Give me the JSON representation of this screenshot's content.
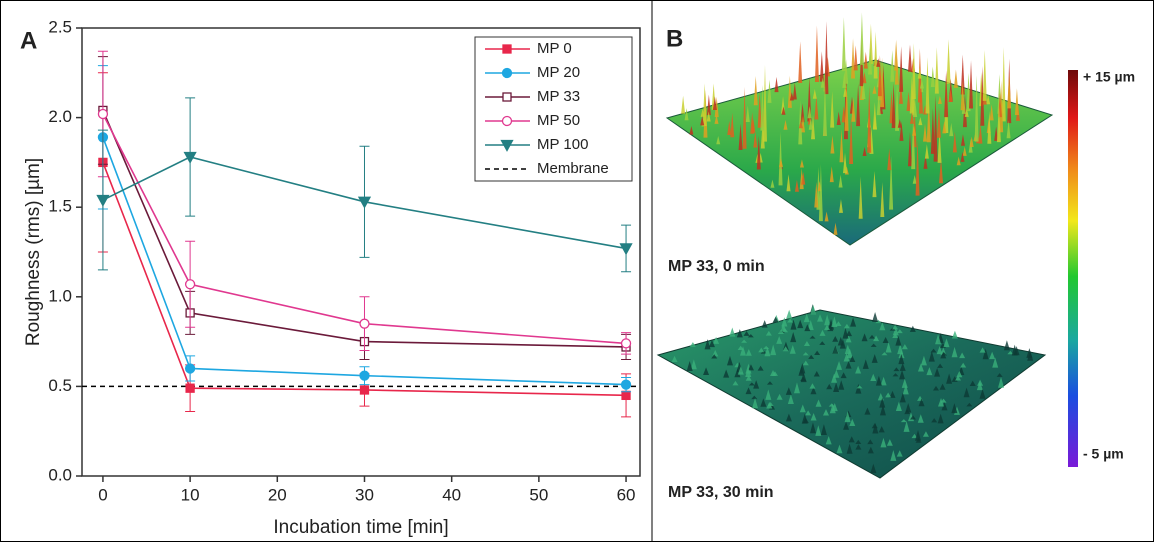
{
  "chart_data": {
    "type": "line",
    "panel_label": "A",
    "xlabel": "Incubation time [min]",
    "ylabel": "Roughness (rms) [µm]",
    "x": [
      0,
      10,
      30,
      60
    ],
    "xlim": [
      -2.4,
      61.6
    ],
    "ylim": [
      0,
      2.5
    ],
    "xticks": [
      0,
      10,
      20,
      30,
      40,
      50,
      60
    ],
    "yticks": [
      {
        "value": 0,
        "label": "0.0"
      },
      0.5,
      {
        "value": 1,
        "label": "1.0"
      },
      1.5,
      {
        "value": 2,
        "label": "2.0"
      },
      2.5
    ],
    "legend": "upper right",
    "series": [
      {
        "name": "MP 0",
        "color": "#e8274b",
        "marker": "square",
        "filled": true,
        "values": [
          1.75,
          0.49,
          0.48,
          0.45
        ],
        "errors": [
          0.5,
          0.13,
          0.09,
          0.12
        ]
      },
      {
        "name": "MP 20",
        "color": "#1ea7e1",
        "marker": "circle",
        "filled": true,
        "values": [
          1.89,
          0.6,
          0.56,
          0.51
        ],
        "errors": [
          0.4,
          0.07,
          0.05,
          0.04
        ]
      },
      {
        "name": "MP 33",
        "color": "#6b1a3a",
        "marker": "square",
        "filled": false,
        "values": [
          2.04,
          0.91,
          0.75,
          0.72
        ],
        "errors": [
          0.3,
          0.12,
          0.1,
          0.07
        ]
      },
      {
        "name": "MP 50",
        "color": "#e0388f",
        "marker": "circle",
        "filled": false,
        "values": [
          2.02,
          1.07,
          0.85,
          0.74
        ],
        "errors": [
          0.35,
          0.24,
          0.15,
          0.06
        ]
      },
      {
        "name": "MP 100",
        "color": "#237f83",
        "marker": "triangle-down",
        "filled": true,
        "values": [
          1.54,
          1.78,
          1.53,
          1.27
        ],
        "errors": [
          0.39,
          0.33,
          0.31,
          0.13
        ]
      }
    ],
    "reference_line": {
      "name": "Membrane",
      "value": 0.5,
      "color": "#000000"
    }
  },
  "panel_b": {
    "panel_label": "B",
    "captions": [
      "MP 33, 0 min",
      "MP 33, 30 min"
    ],
    "colorbar": {
      "max_label": "+ 15 µm",
      "min_label": "- 5 µm"
    }
  }
}
